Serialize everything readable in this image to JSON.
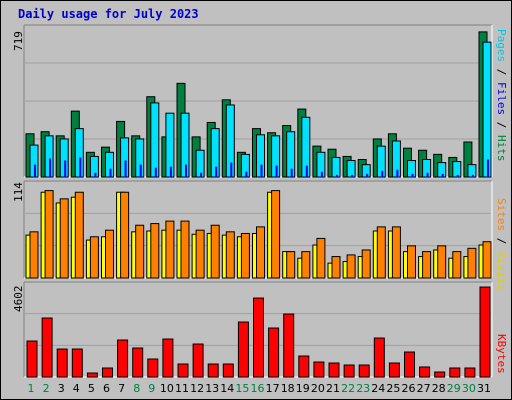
{
  "chart_data": [
    {
      "type": "bar",
      "title": "Daily usage for July 2023",
      "ylabel": "Pages / Files / Hits",
      "ymax_label": "719",
      "ylim": [
        0,
        719
      ],
      "categories": [
        "1",
        "2",
        "3",
        "4",
        "5",
        "6",
        "7",
        "8",
        "9",
        "10",
        "11",
        "12",
        "13",
        "14",
        "15",
        "16",
        "17",
        "18",
        "19",
        "20",
        "21",
        "22",
        "23",
        "24",
        "25",
        "26",
        "27",
        "28",
        "29",
        "30",
        "31"
      ],
      "series": [
        {
          "name": "Hits",
          "color": "#008040",
          "values": [
            210,
            220,
            200,
            320,
            120,
            145,
            270,
            200,
            390,
            195,
            455,
            195,
            265,
            375,
            120,
            235,
            215,
            250,
            330,
            150,
            135,
            100,
            85,
            185,
            210,
            140,
            130,
            110,
            95,
            170,
            705
          ]
        },
        {
          "name": "Files",
          "color": "#00e0ff",
          "values": [
            155,
            200,
            185,
            235,
            100,
            120,
            190,
            185,
            360,
            310,
            310,
            130,
            235,
            350,
            110,
            205,
            200,
            220,
            290,
            120,
            95,
            80,
            60,
            150,
            175,
            80,
            85,
            70,
            75,
            60,
            655
          ]
        },
        {
          "name": "Pages",
          "color": "#0000ff",
          "values": [
            60,
            90,
            80,
            95,
            20,
            40,
            80,
            60,
            45,
            50,
            60,
            20,
            50,
            70,
            25,
            60,
            55,
            40,
            55,
            25,
            10,
            10,
            15,
            30,
            35,
            15,
            20,
            15,
            10,
            10,
            85
          ]
        }
      ]
    },
    {
      "type": "bar",
      "ylabel": "Sites / Visits",
      "ymax_label": "114",
      "ylim": [
        0,
        114
      ],
      "categories": [
        "1",
        "2",
        "3",
        "4",
        "5",
        "6",
        "7",
        "8",
        "9",
        "10",
        "11",
        "12",
        "13",
        "14",
        "15",
        "16",
        "17",
        "18",
        "19",
        "20",
        "21",
        "22",
        "23",
        "24",
        "25",
        "26",
        "27",
        "28",
        "29",
        "30",
        "31"
      ],
      "series": [
        {
          "name": "Visits",
          "color": "#ffff00",
          "values": [
            52,
            104,
            91,
            98,
            46,
            50,
            104,
            56,
            57,
            58,
            58,
            53,
            54,
            52,
            50,
            54,
            104,
            32,
            24,
            40,
            18,
            20,
            26,
            57,
            57,
            32,
            26,
            34,
            24,
            26,
            40
          ]
        },
        {
          "name": "Sites",
          "color": "#ff8000",
          "values": [
            56,
            106,
            96,
            104,
            50,
            58,
            104,
            64,
            66,
            69,
            69,
            58,
            64,
            56,
            54,
            62,
            106,
            32,
            32,
            48,
            26,
            28,
            34,
            62,
            62,
            39,
            32,
            39,
            32,
            36,
            44
          ]
        }
      ]
    },
    {
      "type": "bar",
      "ylabel": "KBytes",
      "ymax_label": "4602",
      "ylim": [
        0,
        4602
      ],
      "categories": [
        "1",
        "2",
        "3",
        "4",
        "5",
        "6",
        "7",
        "8",
        "9",
        "10",
        "11",
        "12",
        "13",
        "14",
        "15",
        "16",
        "17",
        "18",
        "19",
        "20",
        "21",
        "22",
        "23",
        "24",
        "25",
        "26",
        "27",
        "28",
        "29",
        "30",
        "31"
      ],
      "series": [
        {
          "name": "KBytes",
          "color": "#ff0000",
          "values": [
            1800,
            2950,
            1400,
            1400,
            200,
            450,
            1850,
            1450,
            900,
            1900,
            650,
            1650,
            650,
            650,
            2750,
            3950,
            2450,
            3150,
            1050,
            750,
            700,
            600,
            600,
            1950,
            700,
            1250,
            500,
            250,
            450,
            450,
            4500
          ]
        }
      ]
    }
  ],
  "day_labels": [
    "1",
    "2",
    "3",
    "4",
    "5",
    "6",
    "7",
    "8",
    "9",
    "10",
    "11",
    "12",
    "13",
    "14",
    "15",
    "16",
    "17",
    "18",
    "19",
    "20",
    "21",
    "22",
    "23",
    "24",
    "25",
    "26",
    "27",
    "28",
    "29",
    "30",
    "31"
  ],
  "weekend_days": [
    1,
    2,
    8,
    9,
    15,
    16,
    22,
    23,
    29,
    30
  ],
  "colors": {
    "weekday": "#000000",
    "weekend": "#008040"
  }
}
